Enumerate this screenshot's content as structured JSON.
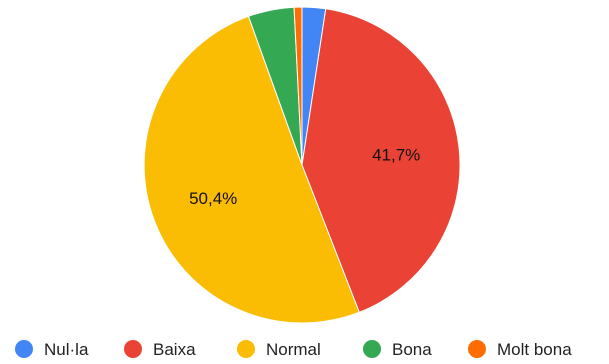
{
  "chart_data": {
    "type": "pie",
    "title": "",
    "categories": [
      "Nul·la",
      "Baixa",
      "Normal",
      "Bona",
      "Molt bona"
    ],
    "values": [
      2.4,
      41.7,
      50.4,
      4.7,
      0.8
    ],
    "colors": [
      "#4285F4",
      "#EA4335",
      "#FBBC04",
      "#34A853",
      "#FF6D01"
    ],
    "data_labels": [
      "",
      "41,7%",
      "50,4%",
      "",
      ""
    ],
    "start_angle_deg": 0,
    "direction": "clockwise",
    "legend": {
      "position": "bottom",
      "entries": [
        "Nul·la",
        "Baixa",
        "Normal",
        "Bona",
        "Molt bona"
      ]
    }
  }
}
